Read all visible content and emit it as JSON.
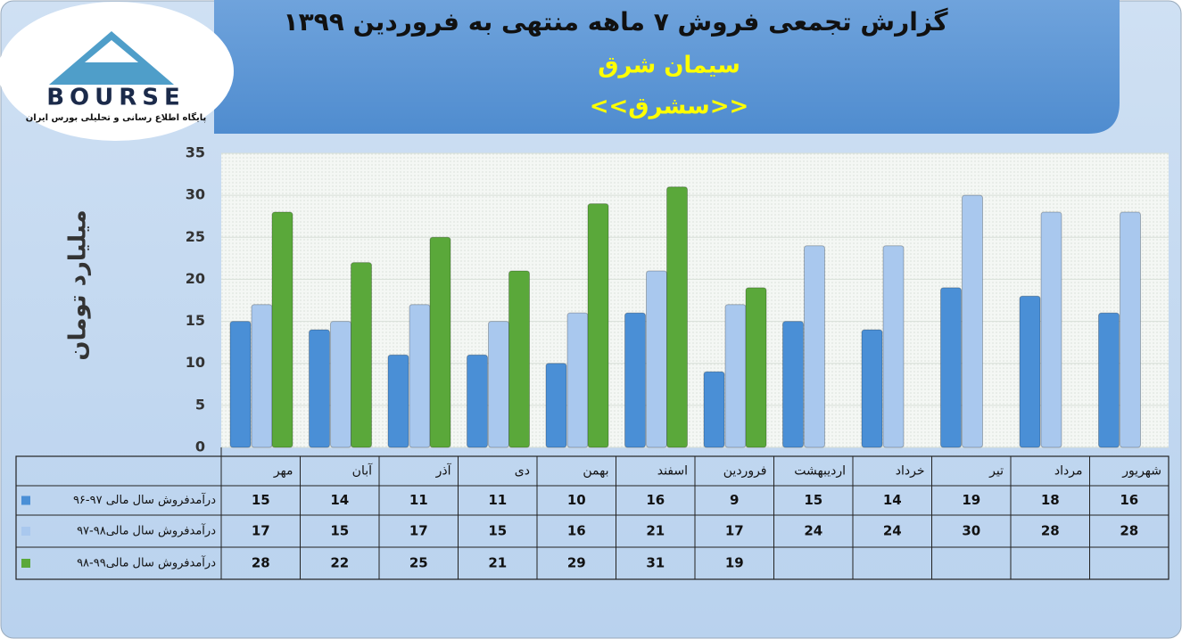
{
  "chart_data": {
    "type": "bar",
    "title": "گزارش تجمعی فروش ۷ ماهه منتهی به فروردین ۱۳۹۹",
    "subtitle": "سیمان شرق",
    "symbol": "<<سشرق>>",
    "y_label": "میلیارد تومان",
    "categories": [
      "مهر",
      "آبان",
      "آذر",
      "دی",
      "بهمن",
      "اسفند",
      "فروردین",
      "اردیبهشت",
      "خرداد",
      "تیر",
      "مرداد",
      "شهریور"
    ],
    "series": [
      {
        "name": "درآمدفروش سال مالی ۹۷-۹۶",
        "color": "#4a8fd6",
        "values": [
          15,
          14,
          11,
          11,
          10,
          16,
          9,
          15,
          14,
          19,
          18,
          16
        ]
      },
      {
        "name": "درآمدفروش سال مالی۹۸-۹۷",
        "color": "#a9c8ee",
        "values": [
          17,
          15,
          17,
          15,
          16,
          21,
          17,
          24,
          24,
          30,
          28,
          28
        ]
      },
      {
        "name": "درآمدفروش سال مالی۹۹-۹۸",
        "color": "#5aa83a",
        "values": [
          28,
          22,
          25,
          21,
          29,
          31,
          19,
          null,
          null,
          null,
          null,
          null
        ]
      }
    ],
    "ylim": [
      0,
      35
    ],
    "yticks": [
      0,
      5,
      10,
      15,
      20,
      25,
      30,
      35
    ],
    "grid": true
  },
  "logo": {
    "text": "BOURSE",
    "caption": "پایگاه اطلاع رسانی و تحلیلی بورس ایران"
  }
}
